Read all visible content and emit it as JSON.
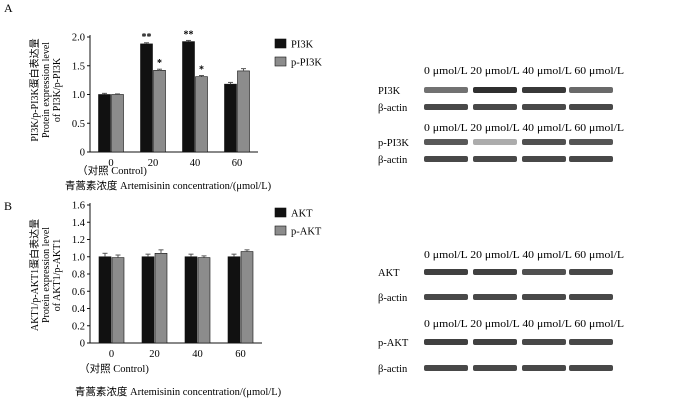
{
  "panels": {
    "A": {
      "letter": "A"
    },
    "B": {
      "letter": "B"
    }
  },
  "chart_data": [
    {
      "type": "bar",
      "panel": "A",
      "categories": [
        "0",
        "20",
        "40",
        "60"
      ],
      "category_note": "（对照 Control)",
      "xlabel": "青蒿素浓度 Artemisinin concentration/(μmol/L)",
      "ylabel_lines": [
        "PI3K/p-PI3K蛋白表达量",
        "Protein expression level",
        "of PI3K/p-PI3K"
      ],
      "yticks": [
        "0",
        "0.5",
        "1.0",
        "1.5",
        "2.0"
      ],
      "ylim": [
        0,
        2.0
      ],
      "series": [
        {
          "name": "PI3K",
          "color": "#111111",
          "values": [
            1.0,
            1.88,
            1.92,
            1.18
          ],
          "errors": [
            0.02,
            0.02,
            0.02,
            0.03
          ]
        },
        {
          "name": "p-PI3K",
          "color": "#8c8c8c",
          "values": [
            1.0,
            1.42,
            1.31,
            1.41
          ],
          "errors": [
            0.01,
            0.02,
            0.02,
            0.04
          ]
        }
      ],
      "annotations": [
        {
          "category": "20",
          "series": 0,
          "text": "**"
        },
        {
          "category": "20",
          "series": 1,
          "text": "*"
        },
        {
          "category": "40",
          "series": 0,
          "text": "**"
        },
        {
          "category": "40",
          "series": 1,
          "text": "*"
        }
      ]
    },
    {
      "type": "bar",
      "panel": "B",
      "categories": [
        "0",
        "20",
        "40",
        "60"
      ],
      "category_note": "（对照 Control)",
      "xlabel": "青蒿素浓度 Artemisinin concentration/(μmol/L)",
      "ylabel_lines": [
        "AKT1/p-AKT1蛋白表达量",
        "Protein expression level",
        "of AKT1/p-AKT1"
      ],
      "yticks": [
        "0",
        "0.2",
        "0.4",
        "0.6",
        "0.8",
        "1.0",
        "1.2",
        "1.4",
        "1.6"
      ],
      "ylim": [
        0,
        1.6
      ],
      "series": [
        {
          "name": "AKT",
          "color": "#111111",
          "values": [
            1.0,
            1.0,
            1.0,
            1.0
          ],
          "errors": [
            0.04,
            0.03,
            0.03,
            0.03
          ]
        },
        {
          "name": "p-AKT",
          "color": "#8c8c8c",
          "values": [
            0.99,
            1.04,
            0.99,
            1.06
          ],
          "errors": [
            0.03,
            0.04,
            0.02,
            0.02
          ]
        }
      ],
      "annotations": []
    }
  ],
  "blots": {
    "A1": {
      "concentrations": "0 μmol/L 20 μmol/L 40 μmol/L 60 μmol/L",
      "target": "PI3K",
      "control": "β-actin"
    },
    "A2": {
      "concentrations": "0 μmol/L 20 μmol/L 40 μmol/L 60 μmol/L",
      "target": "p-PI3K",
      "control": "β-actin"
    },
    "B1": {
      "concentrations": "0 μmol/L 20 μmol/L 40 μmol/L 60 μmol/L",
      "target": "AKT",
      "control": "β-actin"
    },
    "B2": {
      "concentrations": "0 μmol/L 20 μmol/L 40 μmol/L 60 μmol/L",
      "target": "p-AKT",
      "control": "β-actin"
    }
  }
}
